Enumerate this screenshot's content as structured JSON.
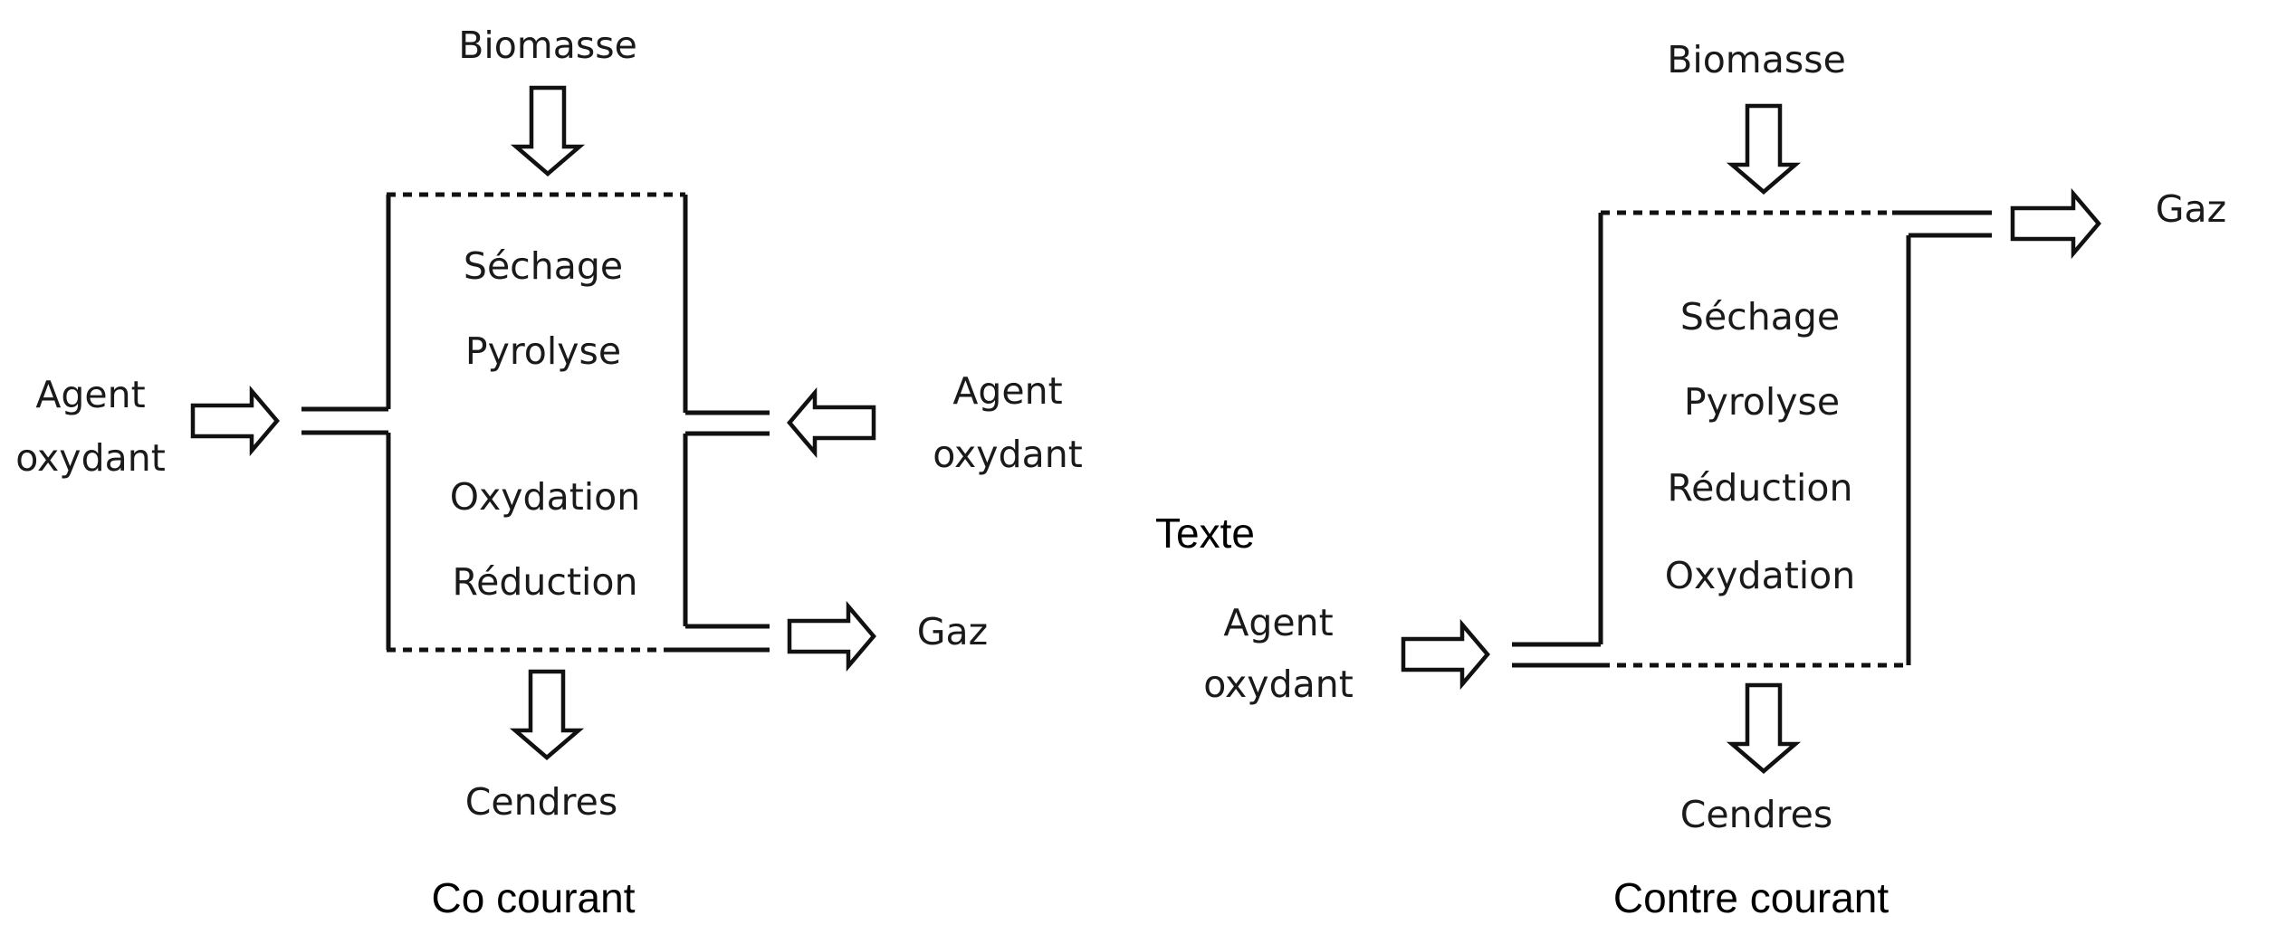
{
  "diagrams": [
    {
      "caption": "Co courant",
      "inputs_top": "Biomasse",
      "stages": [
        "Séchage",
        "Pyrolyse",
        "Oxydation",
        "Réduction"
      ],
      "left_input": [
        "Agent",
        "oxydant"
      ],
      "right_input": [
        "Agent",
        "oxydant"
      ],
      "gas_output": "Gaz",
      "bottom_output": "Cendres"
    },
    {
      "caption": "Contre courant",
      "inputs_top": "Biomasse",
      "stages": [
        "Séchage",
        "Pyrolyse",
        "Réduction",
        "Oxydation"
      ],
      "left_input": [
        "Agent",
        "oxydant"
      ],
      "gas_output": "Gaz",
      "bottom_output": "Cendres"
    }
  ],
  "middle_label": "Texte"
}
